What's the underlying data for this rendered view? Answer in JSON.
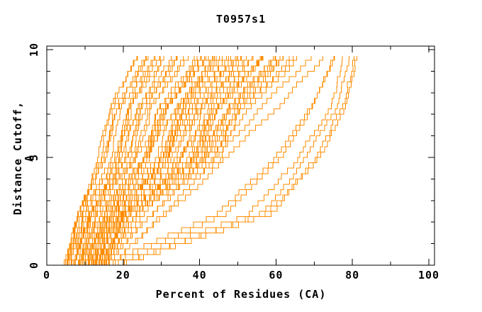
{
  "chart_data": {
    "type": "line",
    "title": "T0957s1",
    "xlabel": "Percent of Residues (CA)",
    "ylabel": "Distance Cutoff, A",
    "xlim": [
      0,
      101.5
    ],
    "ylim": [
      0,
      10.25
    ],
    "x_ticks": {
      "major": [
        0,
        20,
        40,
        60,
        80,
        100
      ],
      "minor": [
        10,
        30,
        50,
        70,
        90
      ]
    },
    "y_ticks": {
      "major": [
        0,
        5,
        10
      ],
      "minor": [
        1,
        2,
        3,
        4,
        6,
        7,
        8,
        9
      ]
    },
    "x_tick_labels": [
      "0",
      "20",
      "40",
      "60",
      "80",
      "100"
    ],
    "y_tick_labels": [
      "0",
      "5",
      "10"
    ],
    "grid": false,
    "legend": false,
    "line_color": "#ff8c00",
    "axis_color": "#000000",
    "curve_top_y": 9.7,
    "curve_y_levels": [
      0,
      2.5,
      5,
      7.5,
      9.7
    ],
    "curves": [
      [
        4.2,
        8.0,
        13.5,
        16.5,
        23.5
      ],
      [
        4.5,
        8.2,
        14.3,
        17.4,
        24.6
      ],
      [
        4.6,
        8.7,
        14.8,
        18.1,
        25.1
      ],
      [
        4.9,
        8.8,
        15.6,
        18.7,
        26.2
      ],
      [
        5.1,
        9.3,
        16.1,
        19.6,
        26.9
      ],
      [
        5.4,
        9.4,
        16.9,
        20.3,
        27.9
      ],
      [
        5.5,
        9.9,
        17.4,
        21.0,
        28.6
      ],
      [
        5.8,
        10.1,
        18.2,
        21.8,
        29.7
      ],
      [
        6.0,
        10.5,
        18.7,
        22.5,
        30.3
      ],
      [
        6.3,
        10.7,
        19.5,
        23.2,
        31.4
      ],
      [
        6.5,
        11.1,
        20.0,
        24.0,
        32.0
      ],
      [
        6.7,
        11.3,
        20.8,
        24.7,
        33.1
      ],
      [
        7.0,
        11.7,
        21.3,
        25.4,
        33.7
      ],
      [
        7.2,
        11.9,
        22.1,
        26.2,
        34.8
      ],
      [
        7.4,
        12.3,
        22.6,
        26.9,
        35.4
      ],
      [
        7.7,
        12.5,
        23.4,
        27.6,
        36.5
      ],
      [
        7.9,
        13.0,
        23.9,
        28.3,
        37.1
      ],
      [
        8.1,
        13.1,
        24.7,
        29.1,
        38.2
      ],
      [
        8.4,
        13.6,
        25.2,
        29.8,
        38.8
      ],
      [
        8.6,
        13.7,
        26.0,
        30.5,
        39.9
      ],
      [
        8.8,
        14.2,
        26.5,
        31.3,
        40.5
      ],
      [
        9.1,
        14.4,
        27.3,
        32.0,
        41.6
      ],
      [
        9.3,
        14.8,
        27.8,
        32.7,
        42.2
      ],
      [
        9.5,
        15.0,
        28.6,
        33.5,
        43.3
      ],
      [
        9.8,
        15.4,
        29.1,
        34.2,
        43.9
      ],
      [
        10.0,
        15.6,
        29.9,
        34.9,
        45.0
      ],
      [
        10.2,
        16.1,
        30.4,
        35.6,
        45.6
      ],
      [
        10.5,
        16.2,
        31.2,
        36.4,
        46.7
      ],
      [
        10.7,
        16.7,
        31.7,
        37.1,
        47.3
      ],
      [
        10.9,
        16.8,
        32.5,
        37.8,
        48.4
      ],
      [
        11.2,
        17.3,
        33.0,
        38.6,
        49.0
      ],
      [
        11.4,
        17.5,
        33.8,
        39.3,
        50.1
      ],
      [
        11.6,
        17.9,
        34.3,
        40.0,
        50.7
      ],
      [
        11.9,
        18.1,
        35.1,
        40.8,
        51.8
      ],
      [
        12.1,
        18.5,
        35.6,
        41.5,
        52.4
      ],
      [
        12.4,
        18.7,
        36.4,
        42.2,
        53.5
      ],
      [
        12.6,
        19.2,
        36.9,
        43.0,
        54.1
      ],
      [
        12.8,
        19.3,
        37.7,
        43.7,
        55.2
      ],
      [
        13.1,
        19.8,
        38.2,
        44.4,
        55.8
      ],
      [
        13.3,
        19.9,
        39.0,
        45.2,
        56.9
      ],
      [
        13.5,
        20.4,
        39.5,
        45.9,
        57.5
      ],
      [
        13.8,
        20.6,
        40.3,
        46.6,
        58.6
      ],
      [
        14.0,
        21.0,
        40.8,
        47.4,
        59.2
      ],
      [
        14.2,
        21.2,
        41.6,
        48.1,
        60.3
      ],
      [
        14.5,
        21.6,
        42.1,
        48.8,
        60.9
      ],
      [
        14.7,
        21.8,
        42.9,
        49.6,
        62.0
      ],
      [
        15.0,
        22.2,
        43.4,
        50.3,
        62.6
      ],
      [
        15.2,
        22.4,
        44.2,
        51.0,
        63.7
      ],
      [
        8.2,
        15.0,
        22.0,
        30.0,
        40.5
      ],
      [
        9.0,
        16.5,
        24.5,
        33.0,
        43.0
      ],
      [
        9.8,
        18.0,
        26.5,
        35.5,
        46.0
      ],
      [
        10.5,
        19.5,
        29.0,
        38.0,
        49.0
      ],
      [
        11.2,
        21.0,
        31.0,
        41.0,
        52.0
      ],
      [
        12.0,
        22.5,
        33.5,
        43.5,
        55.0
      ],
      [
        12.8,
        24.0,
        35.5,
        46.5,
        58.0
      ],
      [
        13.5,
        26.0,
        38.0,
        49.0,
        61.0
      ],
      [
        14.2,
        27.5,
        40.0,
        52.0,
        64.0
      ],
      [
        15.0,
        29.0,
        42.5,
        54.5,
        66.5
      ],
      [
        15.8,
        31.0,
        44.5,
        57.5,
        69.5
      ],
      [
        16.5,
        32.5,
        47.0,
        60.0,
        72.0
      ],
      [
        13.0,
        44.0,
        58.0,
        68.0,
        74.0
      ],
      [
        14.0,
        48.0,
        62.0,
        71.0,
        76.0
      ],
      [
        15.0,
        52.0,
        65.0,
        73.5,
        77.5
      ],
      [
        16.0,
        55.0,
        67.0,
        75.0,
        78.5
      ],
      [
        16.5,
        57.0,
        69.5,
        76.5,
        79.3
      ],
      [
        17.0,
        59.0,
        71.0,
        77.5,
        79.8
      ]
    ]
  },
  "render": {
    "seed": 11,
    "step_angstrom": 0.25,
    "jitter_percent": 0.9
  }
}
